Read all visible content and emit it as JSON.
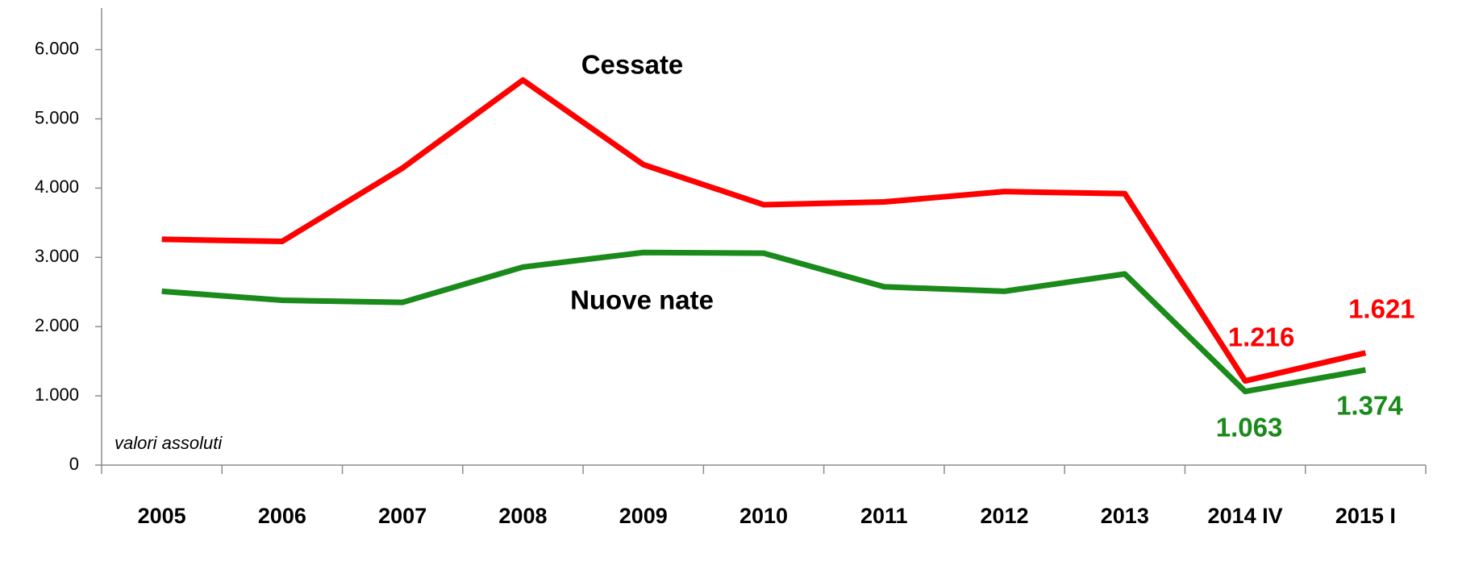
{
  "chart_data": {
    "type": "line",
    "annotation": "valori assoluti",
    "categories": [
      "2005",
      "2006",
      "2007",
      "2008",
      "2009",
      "2010",
      "2011",
      "2012",
      "2013",
      "2014 IV",
      "2015 I"
    ],
    "series": [
      {
        "name": "Cessate",
        "color": "#ff0000",
        "values": [
          3260,
          3230,
          4290,
          5560,
          4340,
          3760,
          3800,
          3950,
          3920,
          1216,
          1621
        ],
        "value_labels": [
          null,
          null,
          null,
          null,
          null,
          null,
          null,
          null,
          null,
          "1.216",
          "1.621"
        ]
      },
      {
        "name": "Nuove nate",
        "color": "#1a8a1a",
        "values": [
          2510,
          2380,
          2350,
          2860,
          3070,
          3060,
          2575,
          2510,
          2760,
          1063,
          1374
        ],
        "value_labels": [
          null,
          null,
          null,
          null,
          null,
          null,
          null,
          null,
          null,
          "1.063",
          "1.374"
        ]
      }
    ],
    "ylim": [
      0,
      6600
    ],
    "yticks": [
      0,
      {
        "value": 1000,
        "label": "1.000"
      },
      {
        "value": 2000,
        "label": "2.000"
      },
      {
        "value": 3000,
        "label": "3.000"
      },
      {
        "value": 4000,
        "label": "4.000"
      },
      {
        "value": 5000,
        "label": "5.000"
      },
      {
        "value": 6000,
        "label": "6.000"
      }
    ],
    "grid": false
  }
}
